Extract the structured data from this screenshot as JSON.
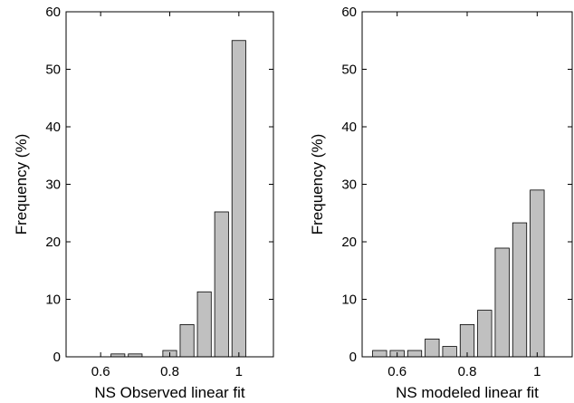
{
  "chart_data": [
    {
      "type": "bar",
      "xlabel": "NS Observed linear fit",
      "ylabel": "Frequency (%)",
      "xlim": [
        0.5,
        1.1
      ],
      "ylim": [
        0,
        60
      ],
      "xticks": [
        0.6,
        0.8,
        1
      ],
      "xtick_labels": [
        "0.6",
        "0.8",
        "1"
      ],
      "yticks": [
        0,
        10,
        20,
        30,
        40,
        50,
        60
      ],
      "ytick_labels": [
        "0",
        "10",
        "20",
        "30",
        "40",
        "50",
        "60"
      ],
      "bar_width": 0.04,
      "bar_color": "#c0c0c0",
      "x": [
        0.55,
        0.6,
        0.65,
        0.7,
        0.75,
        0.8,
        0.85,
        0.9,
        0.95,
        1.0
      ],
      "values": [
        0,
        0,
        0.5,
        0.5,
        0,
        1.1,
        5.6,
        11.3,
        25.2,
        55.0
      ]
    },
    {
      "type": "bar",
      "xlabel": "NS modeled linear fit",
      "ylabel": "Frequency (%)",
      "xlim": [
        0.5,
        1.1
      ],
      "ylim": [
        0,
        60
      ],
      "xticks": [
        0.6,
        0.8,
        1
      ],
      "xtick_labels": [
        "0.6",
        "0.8",
        "1"
      ],
      "yticks": [
        0,
        10,
        20,
        30,
        40,
        50,
        60
      ],
      "ytick_labels": [
        "0",
        "10",
        "20",
        "30",
        "40",
        "50",
        "60"
      ],
      "bar_width": 0.04,
      "bar_color": "#c0c0c0",
      "x": [
        0.55,
        0.6,
        0.65,
        0.7,
        0.75,
        0.8,
        0.85,
        0.9,
        0.95,
        1.0
      ],
      "values": [
        1.1,
        1.1,
        1.1,
        3.1,
        1.8,
        5.6,
        8.1,
        18.9,
        23.3,
        29.0
      ]
    }
  ]
}
